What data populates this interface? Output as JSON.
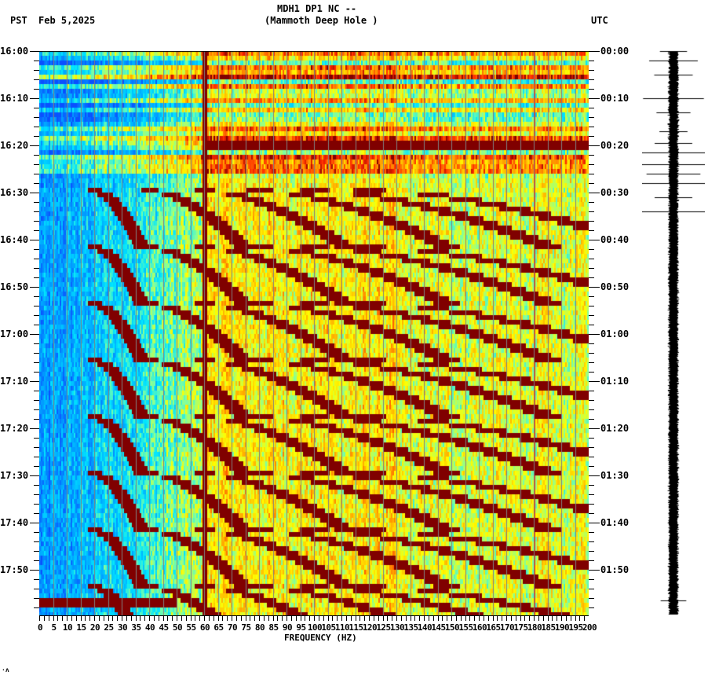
{
  "header": {
    "title_line1": "MDH1 DP1 NC --",
    "title_line2": "(Mammoth Deep Hole )",
    "left_tz": "PST",
    "date": "Feb 5,2025",
    "right_tz": "UTC"
  },
  "footer": {
    "corner_mark": "·ʌ"
  },
  "colors": {
    "background": "#ffffff",
    "low": "#0a6cff",
    "cyan": "#00e5ff",
    "green": "#80ff80",
    "yellow": "#ffff00",
    "orange": "#ff9900",
    "red": "#ff2200",
    "dark_red": "#800000",
    "gridline": "#808080",
    "seismogram": "#000000"
  },
  "chart_data": {
    "type": "heatmap",
    "title": "MDH1 DP1 NC -- (Mammoth Deep Hole )",
    "subtitle": "Feb 5,2025",
    "xlabel": "FREQUENCY (HZ)",
    "ylabel_left": "PST",
    "ylabel_right": "UTC",
    "xlim": [
      0,
      200
    ],
    "x_ticks": [
      0,
      5,
      10,
      15,
      20,
      25,
      30,
      35,
      40,
      45,
      50,
      55,
      60,
      65,
      70,
      75,
      80,
      85,
      90,
      95,
      100,
      105,
      110,
      115,
      120,
      125,
      130,
      135,
      140,
      145,
      150,
      155,
      160,
      165,
      170,
      175,
      180,
      185,
      190,
      195,
      200
    ],
    "x_tick_labels": [
      "0",
      "5",
      "10",
      "15",
      "20",
      "25",
      "30",
      "35",
      "40",
      "45",
      "50",
      "55",
      "60",
      "65",
      "70",
      "75",
      "80",
      "85",
      "90",
      "95",
      "100",
      "105",
      "110",
      "115",
      "120",
      "125",
      "130",
      "135",
      "140",
      "145",
      "150",
      "155",
      "160",
      "165",
      "170",
      "175",
      "180",
      "185",
      "190",
      "195",
      "200"
    ],
    "y_ticks_left": [
      "16:00",
      "16:10",
      "16:20",
      "16:30",
      "16:40",
      "16:50",
      "17:00",
      "17:10",
      "17:20",
      "17:30",
      "17:40",
      "17:50"
    ],
    "y_ticks_right": [
      "00:00",
      "00:10",
      "00:20",
      "00:30",
      "00:40",
      "00:50",
      "01:00",
      "01:10",
      "01:20",
      "01:30",
      "01:40",
      "01:50"
    ],
    "y_range_minutes": [
      0,
      120
    ],
    "minor_tick_minutes": 2,
    "colormap": "jet (blue = low power, dark red = high power)",
    "features": {
      "persistent_line_hz": 60,
      "persistent_line_secondary_hz": 180,
      "broadband_event_minutes": [
        19.5
      ],
      "low_freq_event_minutes": [
        116.5
      ],
      "noisy_interval_minutes": [
        0,
        29
      ],
      "sweep_period_minutes": 12,
      "sweep_start_minutes": [
        29,
        41,
        53,
        65,
        77,
        89,
        101,
        113
      ],
      "sweep_fundamental_start_hz": 20,
      "sweep_fundamental_end_hz": 37,
      "sweep_harmonics": 6
    },
    "legend": "none",
    "grid": "vertical gridlines every 5 Hz"
  },
  "seismogram": {
    "label": "trace",
    "spike_minutes": [
      0,
      2,
      5,
      10,
      13,
      17,
      19.5,
      21.5,
      24,
      26,
      28,
      31,
      34,
      116.5
    ]
  }
}
